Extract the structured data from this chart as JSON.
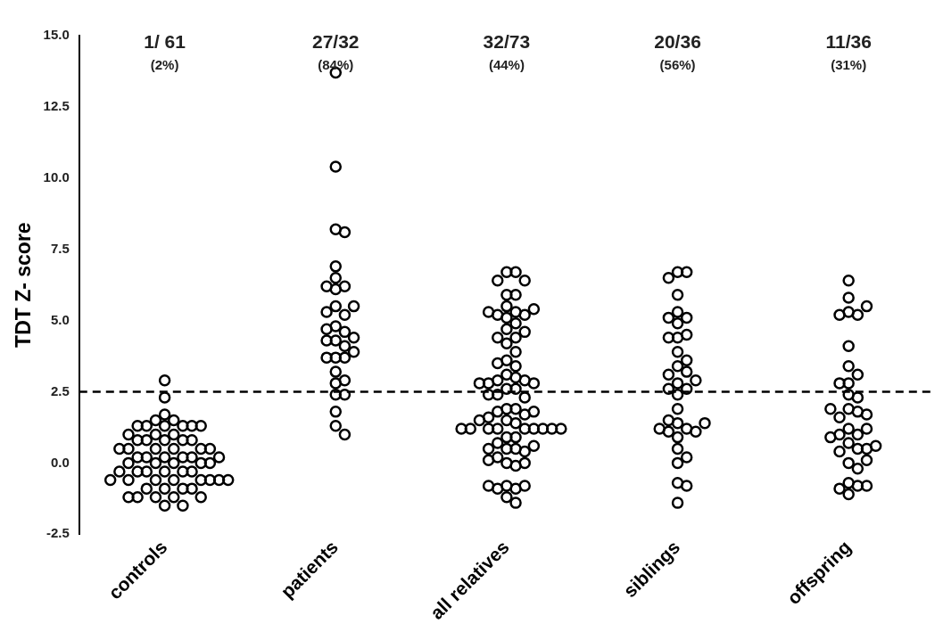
{
  "chart_data": {
    "type": "scatter",
    "ylabel": "TDT Z- score",
    "categories": [
      "controls",
      "patients",
      "all relatives",
      "siblings",
      "offspring"
    ],
    "series": [
      {
        "color": "#000000",
        "x": [
          "controls",
          "controls",
          "controls",
          "controls",
          "controls",
          "controls",
          "controls",
          "controls",
          "controls",
          "controls",
          "controls",
          "controls",
          "controls",
          "controls",
          "controls",
          "controls",
          "controls",
          "controls",
          "controls",
          "controls",
          "controls",
          "controls",
          "controls",
          "controls",
          "controls",
          "controls",
          "controls",
          "controls",
          "controls",
          "controls",
          "controls",
          "controls",
          "controls",
          "controls",
          "controls",
          "controls",
          "controls",
          "controls",
          "controls",
          "controls",
          "controls",
          "controls",
          "controls",
          "controls",
          "controls",
          "controls",
          "controls",
          "controls",
          "controls",
          "controls",
          "controls",
          "controls",
          "controls",
          "controls",
          "controls",
          "controls",
          "controls",
          "controls",
          "controls",
          "controls",
          "controls",
          "patients",
          "patients",
          "patients",
          "patients",
          "patients",
          "patients",
          "patients",
          "patients",
          "patients",
          "patients",
          "patients",
          "patients",
          "patients",
          "patients",
          "patients",
          "patients",
          "patients",
          "patients",
          "patients",
          "patients",
          "patients",
          "patients",
          "patients",
          "patients",
          "patients",
          "patients",
          "patients",
          "patients",
          "patients",
          "patients",
          "patients",
          "patients",
          "all relatives",
          "all relatives",
          "all relatives",
          "all relatives",
          "all relatives",
          "all relatives",
          "all relatives",
          "all relatives",
          "all relatives",
          "all relatives",
          "all relatives",
          "all relatives",
          "all relatives",
          "all relatives",
          "all relatives",
          "all relatives",
          "all relatives",
          "all relatives",
          "all relatives",
          "all relatives",
          "all relatives",
          "all relatives",
          "all relatives",
          "all relatives",
          "all relatives",
          "all relatives",
          "all relatives",
          "all relatives",
          "all relatives",
          "all relatives",
          "all relatives",
          "all relatives",
          "all relatives",
          "all relatives",
          "all relatives",
          "all relatives",
          "all relatives",
          "all relatives",
          "all relatives",
          "all relatives",
          "all relatives",
          "all relatives",
          "all relatives",
          "all relatives",
          "all relatives",
          "all relatives",
          "all relatives",
          "all relatives",
          "all relatives",
          "all relatives",
          "all relatives",
          "all relatives",
          "all relatives",
          "all relatives",
          "all relatives",
          "all relatives",
          "all relatives",
          "all relatives",
          "all relatives",
          "all relatives",
          "all relatives",
          "all relatives",
          "all relatives",
          "all relatives",
          "all relatives",
          "all relatives",
          "all relatives",
          "all relatives",
          "all relatives",
          "all relatives",
          "all relatives",
          "all relatives",
          "all relatives",
          "siblings",
          "siblings",
          "siblings",
          "siblings",
          "siblings",
          "siblings",
          "siblings",
          "siblings",
          "siblings",
          "siblings",
          "siblings",
          "siblings",
          "siblings",
          "siblings",
          "siblings",
          "siblings",
          "siblings",
          "siblings",
          "siblings",
          "siblings",
          "siblings",
          "siblings",
          "siblings",
          "siblings",
          "siblings",
          "siblings",
          "siblings",
          "siblings",
          "siblings",
          "siblings",
          "siblings",
          "siblings",
          "siblings",
          "siblings",
          "siblings",
          "siblings",
          "offspring",
          "offspring",
          "offspring",
          "offspring",
          "offspring",
          "offspring",
          "offspring",
          "offspring",
          "offspring",
          "offspring",
          "offspring",
          "offspring",
          "offspring",
          "offspring",
          "offspring",
          "offspring",
          "offspring",
          "offspring",
          "offspring",
          "offspring",
          "offspring",
          "offspring",
          "offspring",
          "offspring",
          "offspring",
          "offspring",
          "offspring",
          "offspring",
          "offspring",
          "offspring",
          "offspring",
          "offspring",
          "offspring",
          "offspring",
          "offspring",
          "offspring"
        ],
        "values": [
          2.9,
          2.3,
          1.7,
          1.5,
          1.5,
          1.3,
          1.3,
          1.3,
          1.3,
          1.3,
          1.3,
          1.0,
          1.0,
          1.0,
          0.8,
          0.8,
          0.8,
          0.8,
          0.8,
          0.5,
          0.5,
          0.5,
          0.5,
          0.5,
          0.5,
          0.2,
          0.2,
          0.2,
          0.2,
          0.2,
          0.2,
          0.0,
          0.0,
          0.0,
          0.0,
          0.0,
          -0.3,
          -0.3,
          -0.3,
          -0.3,
          -0.3,
          -0.3,
          -0.6,
          -0.6,
          -0.6,
          -0.6,
          -0.6,
          -0.6,
          -0.6,
          -0.6,
          -0.9,
          -0.9,
          -0.9,
          -0.9,
          -1.2,
          -1.2,
          -1.2,
          -1.2,
          -1.2,
          -1.5,
          -1.5,
          13.7,
          10.4,
          8.2,
          8.1,
          6.9,
          6.5,
          6.2,
          6.1,
          6.2,
          5.5,
          5.2,
          5.3,
          5.5,
          4.8,
          4.6,
          4.3,
          4.3,
          4.4,
          4.7,
          4.1,
          3.7,
          3.7,
          3.7,
          3.9,
          3.2,
          2.9,
          2.8,
          2.4,
          2.4,
          1.8,
          1.3,
          1.0,
          6.7,
          6.7,
          6.4,
          6.4,
          5.9,
          5.9,
          5.5,
          5.3,
          5.2,
          5.1,
          5.2,
          5.3,
          5.4,
          4.9,
          4.7,
          4.4,
          4.4,
          4.6,
          4.2,
          3.9,
          3.6,
          3.4,
          3.5,
          3.1,
          3.0,
          2.9,
          2.9,
          2.8,
          2.8,
          2.8,
          2.6,
          2.6,
          2.4,
          2.3,
          2.4,
          1.9,
          1.9,
          1.8,
          1.7,
          1.6,
          1.8,
          1.5,
          1.4,
          1.5,
          1.2,
          1.2,
          1.2,
          1.2,
          1.2,
          1.2,
          1.2,
          1.2,
          1.2,
          0.9,
          0.9,
          0.7,
          0.5,
          0.5,
          0.4,
          0.5,
          0.6,
          0.2,
          0.0,
          -0.1,
          0.0,
          0.1,
          -0.8,
          -0.9,
          -0.9,
          -0.8,
          -0.8,
          -1.2,
          -1.4,
          6.7,
          6.7,
          6.5,
          5.9,
          5.3,
          5.1,
          5.1,
          4.9,
          4.4,
          4.5,
          4.4,
          3.9,
          3.6,
          3.4,
          3.2,
          3.1,
          2.8,
          2.9,
          2.6,
          2.6,
          2.4,
          1.9,
          1.4,
          1.2,
          1.1,
          1.5,
          0.9,
          1.1,
          1.2,
          1.4,
          0.5,
          0.2,
          0.0,
          -0.7,
          -0.8,
          -1.4,
          6.4,
          5.8,
          5.3,
          5.2,
          5.2,
          5.5,
          4.1,
          3.4,
          3.1,
          2.8,
          2.8,
          2.4,
          2.3,
          1.9,
          1.8,
          1.6,
          1.7,
          1.9,
          1.2,
          1.0,
          1.0,
          1.2,
          0.9,
          0.7,
          0.5,
          0.4,
          0.5,
          0.6,
          0.0,
          -0.2,
          0.1,
          -0.7,
          -0.8,
          -1.1,
          -0.9,
          -0.8
        ]
      }
    ],
    "ylim": [
      -2.5,
      15
    ],
    "yticks": [
      {
        "value": -2.5,
        "label": "-2.5"
      },
      {
        "value": 0,
        "label": "0.0"
      },
      {
        "value": 2.5,
        "label": "2.5"
      },
      {
        "value": 5,
        "label": "5.0"
      },
      {
        "value": 7.5,
        "label": "7.5"
      },
      {
        "value": 10,
        "label": "10.0"
      },
      {
        "value": 12.5,
        "label": "12.5"
      },
      {
        "value": 15,
        "label": "15.0"
      }
    ],
    "ref_lines": [
      {
        "axis": "y",
        "value": 2.5,
        "line_style": "dashed",
        "color": "#000000"
      }
    ],
    "annotations": [
      "1/ 61",
      "(2%)",
      "27/32",
      "(84%)",
      "32/73",
      "(44%)",
      "20/36",
      "(56%)",
      "11/36",
      "(31%)"
    ],
    "marker": "circle",
    "grid": false,
    "legend": false
  }
}
